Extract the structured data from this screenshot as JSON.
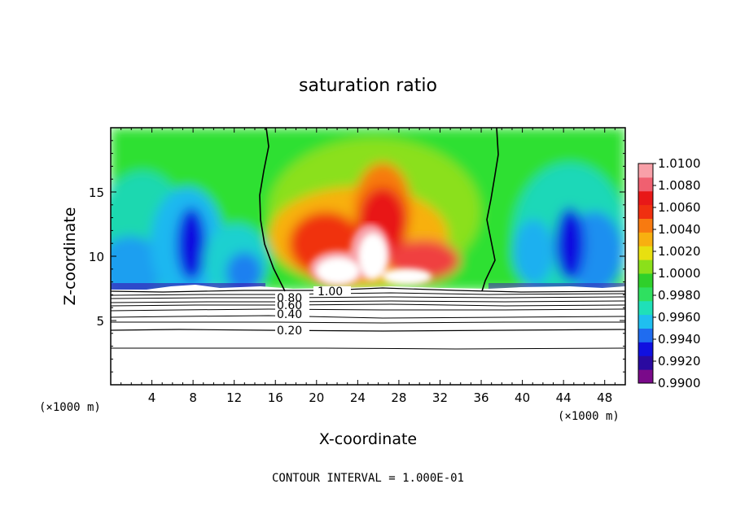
{
  "chart_data": {
    "type": "heatmap",
    "title": "saturation ratio",
    "xlabel": "X-coordinate",
    "ylabel": "Z-coordinate",
    "x_unit": "(×1000 m)",
    "xlim": [
      0,
      50
    ],
    "ylim": [
      0,
      20
    ],
    "x_ticks": [
      4,
      8,
      12,
      16,
      20,
      24,
      28,
      32,
      36,
      40,
      44,
      48
    ],
    "y_ticks": [
      5,
      10,
      15
    ],
    "footer": "CONTOUR INTERVAL = 1.000E-01",
    "colorbar": {
      "levels": [
        "1.0100",
        "1.0080",
        "1.0060",
        "1.0040",
        "1.0020",
        "1.0000",
        "0.9980",
        "0.9960",
        "0.9940",
        "0.9920",
        "0.9900"
      ],
      "colors": [
        "#7a0a8a",
        "#2a0aa0",
        "#1010e0",
        "#1f6cf0",
        "#1fbff0",
        "#1fe0b8",
        "#2fe060",
        "#2fd02a",
        "#8be01a",
        "#e8e010",
        "#f8b010",
        "#f87a10",
        "#f03010",
        "#e81818",
        "#f06070",
        "#f8a0a8"
      ]
    },
    "contours": [
      {
        "label": "1.00",
        "z": 7.3
      },
      {
        "label": "0.80",
        "z": 6.9
      },
      {
        "label": "0.60",
        "z": 6.4
      },
      {
        "label": "0.40",
        "z": 5.5
      },
      {
        "label": "0.20",
        "z": 4.3
      }
    ],
    "saturation_isoline_x": [
      16.5,
      35.0
    ]
  }
}
